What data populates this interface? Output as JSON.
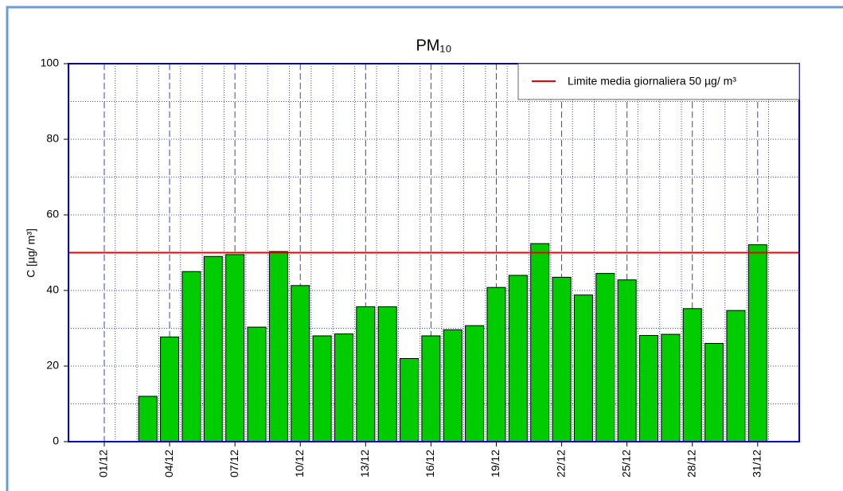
{
  "chart_data": {
    "type": "bar",
    "title": "PM₁₀",
    "y_label": "C [µg/ m³]",
    "categories": [
      "01/12",
      null,
      null,
      "04/12",
      null,
      null,
      "07/12",
      null,
      null,
      "10/12",
      null,
      null,
      "13/12",
      null,
      null,
      "16/12",
      null,
      null,
      "19/12",
      null,
      null,
      "22/12",
      null,
      null,
      "25/12",
      null,
      null,
      "28/12",
      null,
      null,
      "31/12"
    ],
    "values": [
      null,
      null,
      12,
      27.7,
      45,
      49,
      49.5,
      30.3,
      50.3,
      41.3,
      28,
      28.5,
      35.7,
      35.7,
      22,
      28,
      29.6,
      30.7,
      40.8,
      44,
      52.4,
      43.5,
      38.8,
      44.5,
      42.8,
      28.1,
      28.4,
      35.2,
      26,
      34.7,
      52.1
    ],
    "color": "#00cc00",
    "ylim": [
      0,
      100
    ],
    "yticks": [
      0,
      20,
      40,
      60,
      80,
      100
    ],
    "grid": true,
    "reference_line": {
      "value": 50,
      "label": "Limite media giornaliera 50 µg/ m³",
      "color": "#ee0000"
    },
    "legend": "top-right"
  }
}
